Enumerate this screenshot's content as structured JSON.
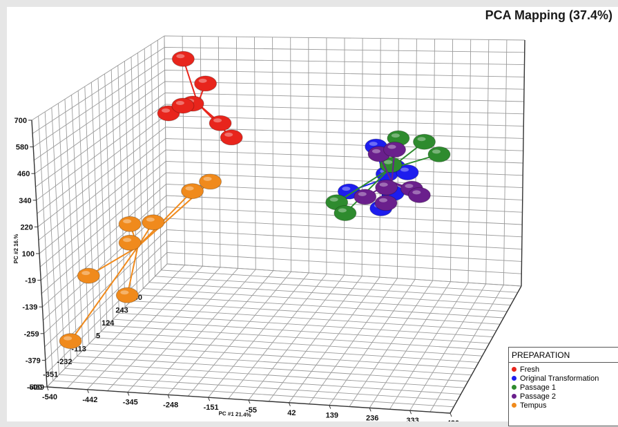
{
  "chart_data": {
    "type": "scatter",
    "title": "PCA Mapping (37.4%)",
    "xlabel": "PC #1 21.4%",
    "ylabel": "PC #2 16.%",
    "x_ticks": [
      "-540",
      "-442",
      "-345",
      "-248",
      "-151",
      "-55",
      "42",
      "139",
      "236",
      "333",
      "430"
    ],
    "y_ticks": [
      "-500",
      "-379",
      "-259",
      "-139",
      "-19",
      "100",
      "220",
      "340",
      "460",
      "580",
      "700"
    ],
    "z_ticks": [
      "-469",
      "-351",
      "-232",
      "-113",
      "5",
      "124",
      "243",
      "330"
    ],
    "xlim": [
      -540,
      430
    ],
    "ylim": [
      -500,
      700
    ],
    "legend_title": "PREPARATION",
    "legend_position": "bottom-right",
    "grid": true,
    "series": [
      {
        "name": "Fresh",
        "color": "#e8251c",
        "points": [
          [
            -460,
            640,
            240
          ],
          [
            -400,
            520,
            240
          ],
          [
            -400,
            470,
            150
          ],
          [
            -430,
            470,
            60
          ],
          [
            -430,
            450,
            160
          ],
          [
            -360,
            320,
            240
          ],
          [
            -330,
            250,
            240
          ]
        ]
      },
      {
        "name": "Original Transformation",
        "color": "#1d1dee",
        "points": [
          [
            60,
            250,
            240
          ],
          [
            110,
            150,
            240
          ],
          [
            130,
            210,
            100
          ],
          [
            170,
            190,
            150
          ],
          [
            30,
            110,
            100
          ],
          [
            160,
            150,
            50
          ],
          [
            120,
            50,
            80
          ]
        ]
      },
      {
        "name": "Passage 1",
        "color": "#2e8b2e",
        "points": [
          [
            120,
            300,
            240
          ],
          [
            190,
            290,
            240
          ],
          [
            230,
            230,
            240
          ],
          [
            10,
            80,
            60
          ],
          [
            100,
            160,
            240
          ],
          [
            20,
            0,
            100
          ]
        ]
      },
      {
        "name": "Passage 2",
        "color": "#6a1f8c",
        "points": [
          [
            80,
            240,
            200
          ],
          [
            110,
            240,
            240
          ],
          [
            140,
            170,
            60
          ],
          [
            190,
            130,
            120
          ],
          [
            90,
            130,
            40
          ],
          [
            210,
            100,
            120
          ],
          [
            150,
            120,
            20
          ]
        ]
      },
      {
        "name": "Tempus",
        "color": "#f08a1c",
        "points": [
          [
            -470,
            20,
            -100
          ],
          [
            -500,
            -100,
            -300
          ],
          [
            -470,
            -70,
            -100
          ],
          [
            -440,
            -250,
            -200
          ],
          [
            -490,
            -300,
            -450
          ],
          [
            -440,
            -20,
            -20
          ],
          [
            -420,
            -10,
            200
          ],
          [
            -410,
            -30,
            300
          ]
        ]
      }
    ]
  }
}
